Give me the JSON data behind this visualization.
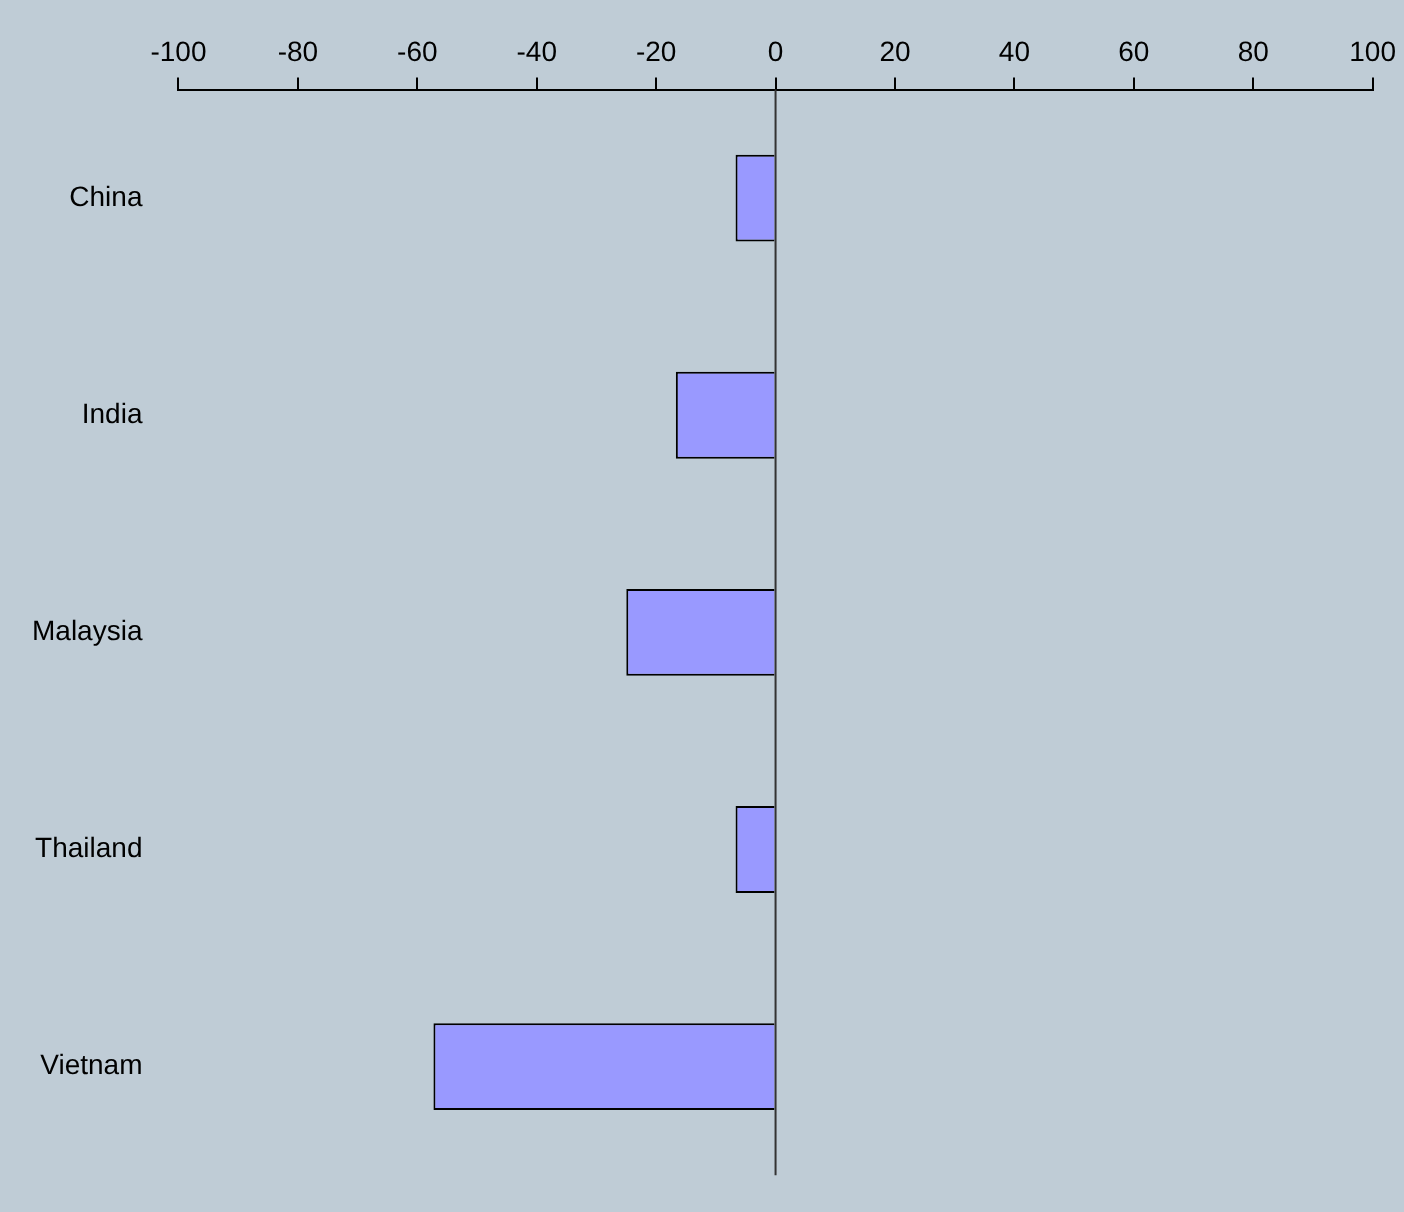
{
  "chart_data": {
    "type": "bar",
    "orientation": "horizontal",
    "categories": [
      "China",
      "India",
      "Malaysia",
      "Thailand",
      "Vietnam"
    ],
    "values": [
      -6.7,
      -16.7,
      -25,
      -6.7,
      -57.3
    ],
    "color": "#9999ff",
    "xlim": [
      -100,
      100
    ],
    "xticks": [
      -100,
      -80,
      -60,
      -40,
      -20,
      0,
      20,
      40,
      60,
      80,
      100
    ],
    "legend": false,
    "ref_lines": [
      {
        "axis": "x",
        "value": 0,
        "color": "#333333"
      }
    ]
  }
}
